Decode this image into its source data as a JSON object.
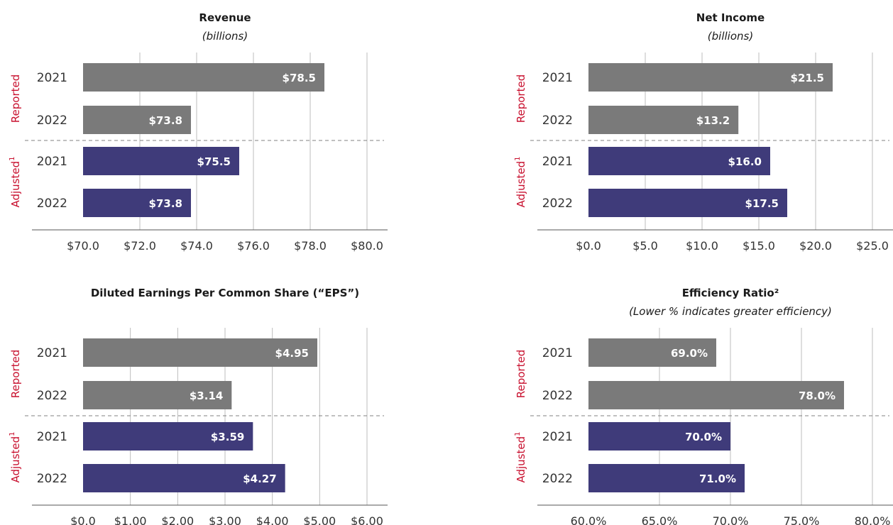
{
  "colors": {
    "reported": "#7a7a7a",
    "adjusted": "#3f3b7a",
    "group_label": "#c8102e"
  },
  "chart_data": [
    {
      "type": "bar",
      "orientation": "horizontal",
      "title": "Revenue",
      "subtitle": "(billions)",
      "groups": [
        {
          "label": "Reported",
          "sup": "",
          "color_key": "reported",
          "bars": [
            {
              "year": "2021",
              "value": 78.5,
              "label": "$78.5"
            },
            {
              "year": "2022",
              "value": 73.8,
              "label": "$73.8"
            }
          ]
        },
        {
          "label": "Adjusted",
          "sup": "1",
          "color_key": "adjusted",
          "bars": [
            {
              "year": "2021",
              "value": 75.5,
              "label": "$75.5"
            },
            {
              "year": "2022",
              "value": 73.8,
              "label": "$73.8"
            }
          ]
        }
      ],
      "xlim": [
        70,
        80
      ],
      "ticks": [
        70,
        72,
        74,
        76,
        78,
        80
      ],
      "tick_labels": [
        "$70.0",
        "$72.0",
        "$74.0",
        "$76.0",
        "$78.0",
        "$80.0"
      ]
    },
    {
      "type": "bar",
      "orientation": "horizontal",
      "title": "Net Income",
      "subtitle": "(billions)",
      "groups": [
        {
          "label": "Reported",
          "sup": "",
          "color_key": "reported",
          "bars": [
            {
              "year": "2021",
              "value": 21.5,
              "label": "$21.5"
            },
            {
              "year": "2022",
              "value": 13.2,
              "label": "$13.2"
            }
          ]
        },
        {
          "label": "Adjusted",
          "sup": "1",
          "color_key": "adjusted",
          "bars": [
            {
              "year": "2021",
              "value": 16.0,
              "label": "$16.0"
            },
            {
              "year": "2022",
              "value": 17.5,
              "label": "$17.5"
            }
          ]
        }
      ],
      "xlim": [
        0,
        25
      ],
      "ticks": [
        0,
        5,
        10,
        15,
        20,
        25
      ],
      "tick_labels": [
        "$0.0",
        "$5.0",
        "$10.0",
        "$15.0",
        "$20.0",
        "$25.0"
      ]
    },
    {
      "type": "bar",
      "orientation": "horizontal",
      "title": "Diluted Earnings Per Common Share (“EPS”)",
      "subtitle": "",
      "groups": [
        {
          "label": "Reported",
          "sup": "",
          "color_key": "reported",
          "bars": [
            {
              "year": "2021",
              "value": 4.95,
              "label": "$4.95"
            },
            {
              "year": "2022",
              "value": 3.14,
              "label": "$3.14"
            }
          ]
        },
        {
          "label": "Adjusted",
          "sup": "1",
          "color_key": "adjusted",
          "bars": [
            {
              "year": "2021",
              "value": 3.59,
              "label": "$3.59"
            },
            {
              "year": "2022",
              "value": 4.27,
              "label": "$4.27"
            }
          ]
        }
      ],
      "xlim": [
        0,
        6
      ],
      "ticks": [
        0,
        1,
        2,
        3,
        4,
        5,
        6
      ],
      "tick_labels": [
        "$0.0",
        "$1.00",
        "$2.00",
        "$3.00",
        "$4.00",
        "$5.00",
        "$6.00"
      ]
    },
    {
      "type": "bar",
      "orientation": "horizontal",
      "title": "Efficiency Ratio²",
      "subtitle": "(Lower % indicates greater efficiency)",
      "groups": [
        {
          "label": "Reported",
          "sup": "",
          "color_key": "reported",
          "bars": [
            {
              "year": "2021",
              "value": 69.0,
              "label": "69.0%"
            },
            {
              "year": "2022",
              "value": 78.0,
              "label": "78.0%"
            }
          ]
        },
        {
          "label": "Adjusted",
          "sup": "1",
          "color_key": "adjusted",
          "bars": [
            {
              "year": "2021",
              "value": 70.0,
              "label": "70.0%"
            },
            {
              "year": "2022",
              "value": 71.0,
              "label": "71.0%"
            }
          ]
        }
      ],
      "xlim": [
        60,
        80
      ],
      "ticks": [
        60,
        65,
        70,
        75,
        80
      ],
      "tick_labels": [
        "60.0%",
        "65.0%",
        "70.0%",
        "75.0%",
        "80.0%"
      ]
    }
  ]
}
